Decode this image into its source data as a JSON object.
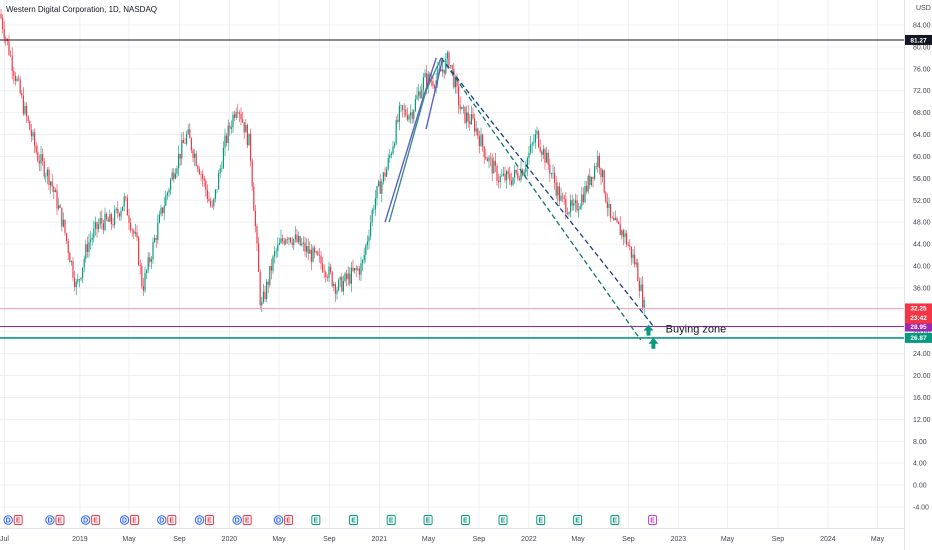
{
  "chart_data": {
    "type": "candlestick",
    "title": "Western Digital Corporation, 1D, NASDAQ",
    "y_unit": "USD",
    "ylim": [
      -4,
      86
    ],
    "y_ticks": [
      84,
      80,
      76,
      72,
      68,
      64,
      60,
      56,
      52,
      48,
      44,
      40,
      36,
      32,
      28,
      24,
      20,
      16,
      12,
      8,
      4,
      0,
      -4
    ],
    "y_tick_labels": [
      "84.00",
      "80.00",
      "76.00",
      "72.00",
      "68.00",
      "64.00",
      "60.00",
      "56.00",
      "52.00",
      "48.00",
      "44.00",
      "40.00",
      "36.00",
      "32.00",
      "28.00",
      "24.00",
      "20.00",
      "16.00",
      "12.00",
      "8.00",
      "4.00",
      "0.00",
      "-4.00"
    ],
    "x_tick_labels": [
      "Jul",
      "2019",
      "May",
      "Sep",
      "2020",
      "May",
      "Sep",
      "2021",
      "May",
      "Sep",
      "2022",
      "May",
      "Sep",
      "2023",
      "May",
      "Sep",
      "2024",
      "May"
    ],
    "x_tick_dates": [
      "2018-07",
      "2019-01",
      "2019-05",
      "2019-09",
      "2020-01",
      "2020-05",
      "2020-09",
      "2021-01",
      "2021-05",
      "2021-09",
      "2022-01",
      "2022-05",
      "2022-09",
      "2023-01",
      "2023-05",
      "2023-09",
      "2024-01",
      "2024-05"
    ],
    "price_path": [
      [
        "2018-06-20",
        86
      ],
      [
        "2018-07-20",
        77
      ],
      [
        "2018-08-20",
        68
      ],
      [
        "2018-09-20",
        60
      ],
      [
        "2018-10-20",
        56
      ],
      [
        "2018-11-20",
        48
      ],
      [
        "2018-12-24",
        36
      ],
      [
        "2019-01-20",
        44
      ],
      [
        "2019-02-20",
        48
      ],
      [
        "2019-03-20",
        48
      ],
      [
        "2019-04-20",
        52
      ],
      [
        "2019-05-20",
        44
      ],
      [
        "2019-06-03",
        36
      ],
      [
        "2019-07-20",
        50
      ],
      [
        "2019-08-20",
        58
      ],
      [
        "2019-09-20",
        64
      ],
      [
        "2019-10-20",
        58
      ],
      [
        "2019-11-20",
        50
      ],
      [
        "2019-12-20",
        62
      ],
      [
        "2020-01-20",
        70
      ],
      [
        "2020-02-20",
        62
      ],
      [
        "2020-03-18",
        32
      ],
      [
        "2020-04-20",
        42
      ],
      [
        "2020-05-20",
        46
      ],
      [
        "2020-06-20",
        44
      ],
      [
        "2020-07-20",
        42
      ],
      [
        "2020-08-20",
        40
      ],
      [
        "2020-09-20",
        36
      ],
      [
        "2020-10-20",
        38
      ],
      [
        "2020-11-20",
        40
      ],
      [
        "2020-12-20",
        52
      ],
      [
        "2021-01-20",
        58
      ],
      [
        "2021-02-20",
        68
      ],
      [
        "2021-03-20",
        68
      ],
      [
        "2021-04-20",
        74
      ],
      [
        "2021-05-20",
        74
      ],
      [
        "2021-06-20",
        78
      ],
      [
        "2021-07-20",
        68
      ],
      [
        "2021-08-20",
        66
      ],
      [
        "2021-09-20",
        60
      ],
      [
        "2021-10-20",
        56
      ],
      [
        "2021-11-20",
        56
      ],
      [
        "2021-12-20",
        58
      ],
      [
        "2022-01-20",
        64
      ],
      [
        "2022-02-20",
        58
      ],
      [
        "2022-03-20",
        52
      ],
      [
        "2022-04-20",
        50
      ],
      [
        "2022-05-20",
        54
      ],
      [
        "2022-06-20",
        60
      ],
      [
        "2022-07-20",
        48
      ],
      [
        "2022-08-20",
        46
      ],
      [
        "2022-09-20",
        40
      ],
      [
        "2022-10-10",
        32.25
      ]
    ],
    "pattern_lines": [
      {
        "color": "#5b5fc7",
        "points": [
          [
            "2021-01-15",
            48
          ],
          [
            "2021-04-15",
            70
          ],
          [
            "2021-05-20",
            78
          ]
        ]
      },
      {
        "color": "#3d8f85",
        "points": [
          [
            "2021-01-25",
            48
          ],
          [
            "2021-04-25",
            72
          ],
          [
            "2021-06-01",
            78
          ]
        ]
      },
      {
        "color": "#5b5fc7",
        "points": [
          [
            "2021-04-25",
            65
          ],
          [
            "2021-06-05",
            78
          ]
        ]
      }
    ],
    "dashed_lines": [
      {
        "color": "#1e3a8a",
        "from": [
          "2021-06-01",
          78
        ],
        "to": [
          "2022-11-01",
          29
        ]
      },
      {
        "color": "#0f766e",
        "from": [
          "2021-06-01",
          78
        ],
        "to": [
          "2022-10-01",
          26.5
        ]
      }
    ],
    "horizontal_lines": [
      {
        "value": 81.27,
        "color": "#131722",
        "label": "81.27"
      },
      {
        "value": 32.25,
        "color": "#f7a1b8",
        "label": "32.25"
      },
      {
        "value": 28.95,
        "color": "#9c27b0",
        "label": "28.95"
      },
      {
        "value": 26.87,
        "color": "#089981",
        "label": "26.87"
      }
    ],
    "last_price": {
      "value": "32.25",
      "countdown": "23:42"
    },
    "arrows": [
      [
        "2022-10-20",
        28.2
      ],
      [
        "2022-11-01",
        25.8
      ]
    ],
    "annotation": {
      "text": "Buying zone",
      "date": "2022-12-01",
      "value": 28.0
    },
    "events": [
      {
        "date": "2018-07-10",
        "letters": [
          "D",
          "E"
        ]
      },
      {
        "date": "2018-10-20",
        "letters": [
          "D",
          "E"
        ]
      },
      {
        "date": "2019-01-15",
        "letters": [
          "D",
          "E"
        ]
      },
      {
        "date": "2019-04-20",
        "letters": [
          "D",
          "E"
        ]
      },
      {
        "date": "2019-07-20",
        "letters": [
          "D",
          "E"
        ]
      },
      {
        "date": "2019-10-20",
        "letters": [
          "D",
          "E"
        ]
      },
      {
        "date": "2020-01-20",
        "letters": [
          "D",
          "E"
        ]
      },
      {
        "date": "2020-04-30",
        "letters": [
          "D",
          "E"
        ]
      },
      {
        "date": "2020-07-30",
        "letters": [
          "E"
        ]
      },
      {
        "date": "2020-10-30",
        "letters": [
          "E"
        ]
      },
      {
        "date": "2021-01-30",
        "letters": [
          "E"
        ]
      },
      {
        "date": "2021-04-30",
        "letters": [
          "E"
        ]
      },
      {
        "date": "2021-07-30",
        "letters": [
          "E"
        ]
      },
      {
        "date": "2021-10-30",
        "letters": [
          "E"
        ]
      },
      {
        "date": "2022-01-30",
        "letters": [
          "E"
        ]
      },
      {
        "date": "2022-04-30",
        "letters": [
          "E"
        ]
      },
      {
        "date": "2022-07-30",
        "letters": [
          "E"
        ]
      },
      {
        "date": "2022-10-30",
        "letters": [
          "E"
        ]
      }
    ],
    "colors": {
      "up": "#089981",
      "down": "#f23645",
      "grid": "#eef0f3",
      "event_blue": "#2962ff",
      "event_red": "#f23645",
      "event_green": "#089981",
      "event_future": "#c040c0"
    },
    "grid": true
  }
}
